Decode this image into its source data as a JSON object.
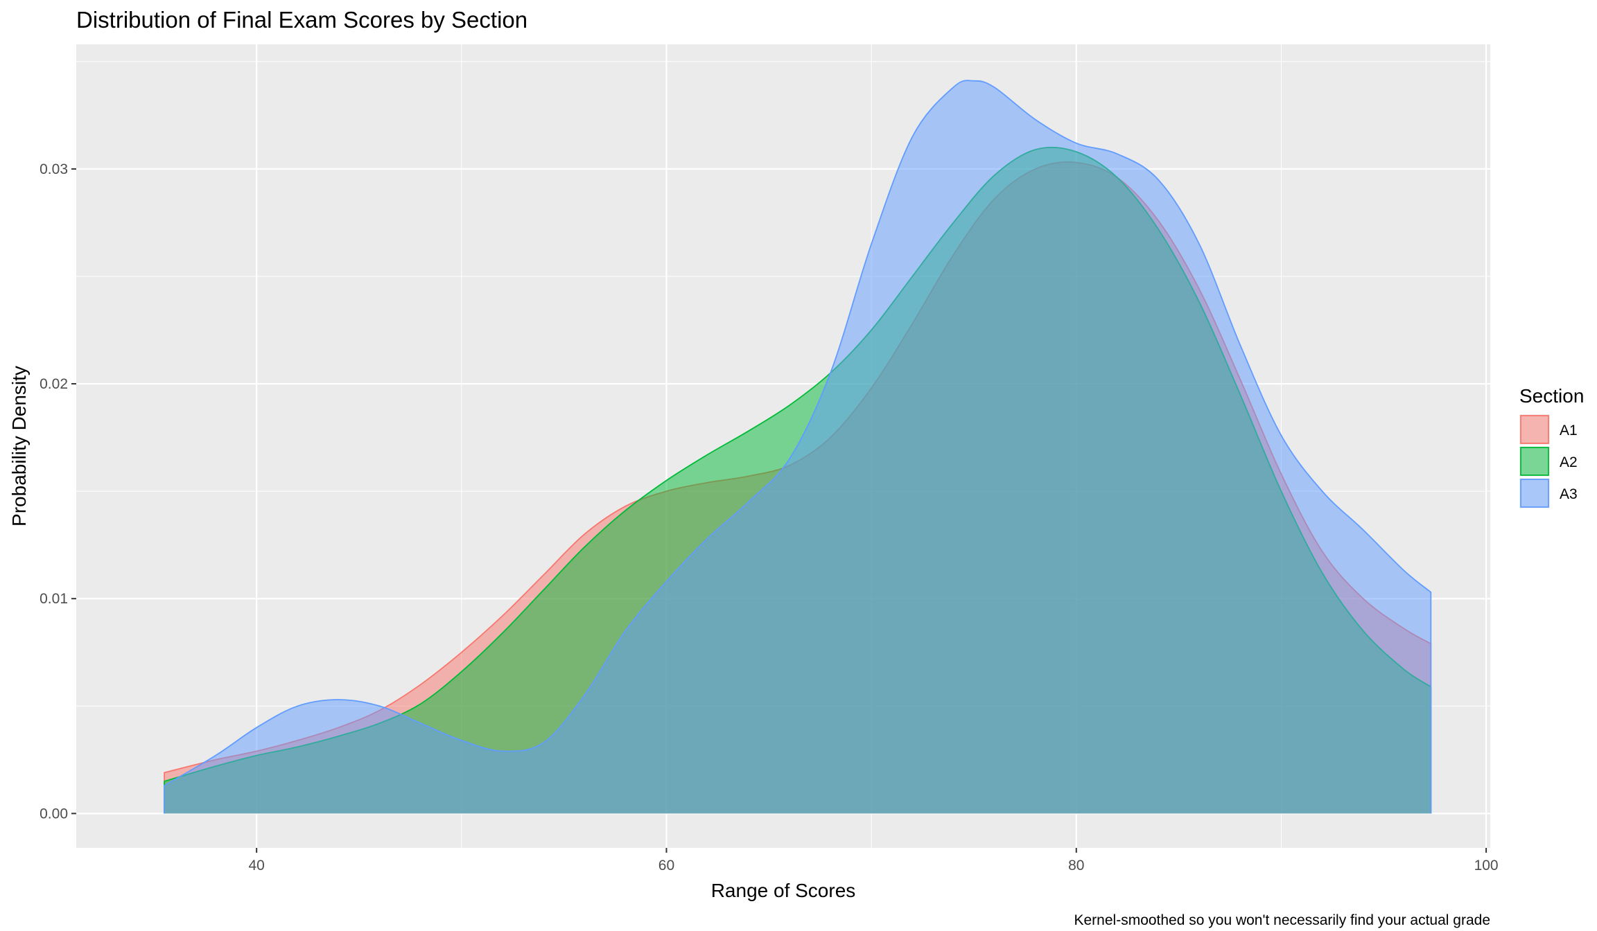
{
  "chart_data": {
    "type": "area",
    "subtype": "density",
    "title": "Distribution of Final Exam Scores by Section",
    "xlabel": "Range of Scores",
    "ylabel": "Probability Density",
    "caption": "Kernel-smoothed so you won't necessarily find your actual grade",
    "xlim": [
      31.2,
      100.2
    ],
    "ylim": [
      -0.0016,
      0.0358
    ],
    "x_ticks": [
      40,
      60,
      80,
      100
    ],
    "x_minor": [
      30,
      50,
      70,
      90
    ],
    "y_ticks": [
      0.0,
      0.01,
      0.02,
      0.03
    ],
    "y_tick_labels": [
      "0.00",
      "0.01",
      "0.02",
      "0.03"
    ],
    "y_minor": [
      0.005,
      0.015,
      0.025,
      0.035
    ],
    "grid": true,
    "legend": {
      "title": "Section",
      "position": "right"
    },
    "series": [
      {
        "name": "A1",
        "color": "#F8766D",
        "x": [
          35.5,
          38,
          40,
          42,
          44,
          46,
          48,
          50,
          52,
          54,
          56,
          58,
          60,
          62,
          64,
          66,
          68,
          70,
          72,
          74,
          76,
          78,
          80,
          82,
          84,
          86,
          88,
          90,
          92,
          94,
          96,
          97.3
        ],
        "y": [
          0.0019,
          0.0025,
          0.0029,
          0.0034,
          0.004,
          0.0048,
          0.006,
          0.0075,
          0.0092,
          0.0111,
          0.013,
          0.0143,
          0.015,
          0.0154,
          0.0157,
          0.0162,
          0.0175,
          0.0198,
          0.0228,
          0.026,
          0.0286,
          0.03,
          0.0303,
          0.0296,
          0.0276,
          0.0244,
          0.0202,
          0.0158,
          0.0122,
          0.01,
          0.0086,
          0.0079
        ]
      },
      {
        "name": "A2",
        "color": "#00BA38",
        "x": [
          35.5,
          38,
          40,
          42,
          44,
          46,
          48,
          50,
          52,
          54,
          56,
          58,
          60,
          62,
          64,
          66,
          68,
          70,
          72,
          74,
          76,
          78,
          80,
          82,
          84,
          86,
          88,
          90,
          92,
          94,
          96,
          97.3
        ],
        "y": [
          0.0015,
          0.0022,
          0.0027,
          0.0031,
          0.0036,
          0.0042,
          0.0051,
          0.0066,
          0.0084,
          0.0104,
          0.0124,
          0.0141,
          0.0155,
          0.0167,
          0.0178,
          0.019,
          0.0205,
          0.0225,
          0.025,
          0.0275,
          0.0297,
          0.0309,
          0.0308,
          0.0296,
          0.0272,
          0.0238,
          0.0195,
          0.015,
          0.0112,
          0.0085,
          0.0067,
          0.0059
        ]
      },
      {
        "name": "A3",
        "color": "#619CFF",
        "x": [
          35.5,
          38,
          40,
          42,
          44,
          46,
          48,
          50,
          52,
          54,
          56,
          58,
          60,
          62,
          64,
          66,
          68,
          70,
          72,
          74,
          75,
          76,
          78,
          80,
          82,
          84,
          86,
          88,
          90,
          92,
          94,
          96,
          97.3
        ],
        "y": [
          0.0013,
          0.0027,
          0.004,
          0.005,
          0.0053,
          0.005,
          0.0042,
          0.0034,
          0.0029,
          0.0033,
          0.0055,
          0.0085,
          0.0108,
          0.0128,
          0.0145,
          0.0165,
          0.0205,
          0.0265,
          0.0315,
          0.0338,
          0.0341,
          0.0338,
          0.0323,
          0.0312,
          0.0307,
          0.0295,
          0.0265,
          0.0218,
          0.0176,
          0.015,
          0.0132,
          0.0113,
          0.0103
        ]
      }
    ]
  }
}
